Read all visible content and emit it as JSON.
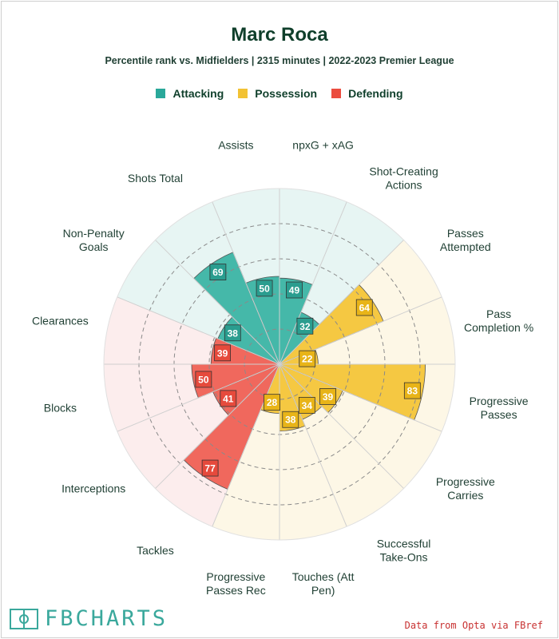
{
  "title": "Marc Roca",
  "subtitle": "Percentile rank vs. Midfielders | 2315 minutes | 2022-2023 Premier League",
  "legend": [
    {
      "label": "Attacking",
      "color": "#2aa89a"
    },
    {
      "label": "Possession",
      "color": "#f2c234"
    },
    {
      "label": "Defending",
      "color": "#eb4d3f"
    }
  ],
  "logo_text": "FBCHARTS",
  "source": "Data from Opta via FBref",
  "chart_data": {
    "type": "polar-bar",
    "range": [
      0,
      100
    ],
    "grid": true,
    "series_colors": {
      "Attacking": {
        "bar": "#45b8a9",
        "bg": "#e7f5f3",
        "label": "#2a9d8f"
      },
      "Possession": {
        "bar": "#f5c842",
        "bg": "#fdf7e6",
        "label": "#e8b418"
      },
      "Defending": {
        "bar": "#f0685d",
        "bg": "#fceded",
        "label": "#e64a3c"
      }
    },
    "categories": [
      {
        "label": "npxG + xAG",
        "value": 49,
        "group": "Attacking"
      },
      {
        "label": "Shot-Creating\nActions",
        "value": 32,
        "group": "Attacking"
      },
      {
        "label": "Passes\nAttempted",
        "value": 64,
        "group": "Possession"
      },
      {
        "label": "Pass\nCompletion %",
        "value": 22,
        "group": "Possession"
      },
      {
        "label": "Progressive\nPasses",
        "value": 83,
        "group": "Possession"
      },
      {
        "label": "Progressive\nCarries",
        "value": 39,
        "group": "Possession"
      },
      {
        "label": "Successful\nTake-Ons",
        "value": 34,
        "group": "Possession"
      },
      {
        "label": "Touches (Att\nPen)",
        "value": 38,
        "group": "Possession"
      },
      {
        "label": "Progressive\nPasses Rec",
        "value": 28,
        "group": "Possession"
      },
      {
        "label": "Tackles",
        "value": 77,
        "group": "Defending"
      },
      {
        "label": "Interceptions",
        "value": 41,
        "group": "Defending"
      },
      {
        "label": "Blocks",
        "value": 50,
        "group": "Defending"
      },
      {
        "label": "Clearances",
        "value": 39,
        "group": "Defending"
      },
      {
        "label": "Non-Penalty\nGoals",
        "value": 38,
        "group": "Attacking"
      },
      {
        "label": "Shots Total",
        "value": 69,
        "group": "Attacking"
      },
      {
        "label": "Assists",
        "value": 50,
        "group": "Attacking"
      }
    ]
  }
}
